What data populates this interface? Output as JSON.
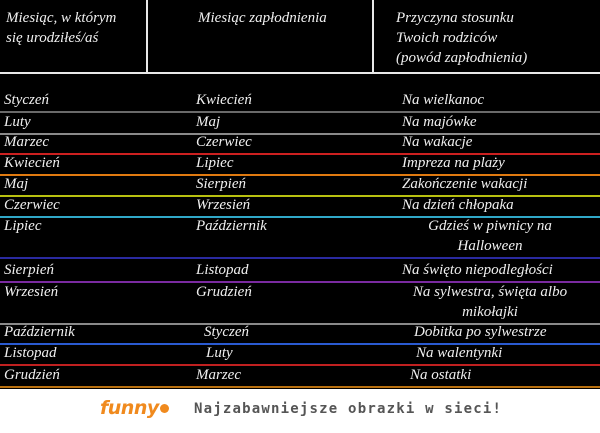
{
  "header": {
    "col1": "Miesiąc, w którym\nsię urodziłeś/aś",
    "col2": "Miesiąc zapłodnienia",
    "col3": "Przyczyna stosunku\nTwoich rodziców\n(powód zapłodnienia)"
  },
  "rows": [
    {
      "birth": "Styczeń",
      "conception": "Kwiecień",
      "reason": "Na wielkanoc",
      "line_color": "#6a6a6a"
    },
    {
      "birth": "Luty",
      "conception": "Maj",
      "reason": "Na majówke",
      "line_color": "#8a8a8a"
    },
    {
      "birth": "Marzec",
      "conception": "Czerwiec",
      "reason": "Na wakacje",
      "line_color": "#cc2020"
    },
    {
      "birth": "Kwiecień",
      "conception": "Lipiec",
      "reason": "Impreza na plaży",
      "line_color": "#e07a10"
    },
    {
      "birth": "Maj",
      "conception": "Sierpień",
      "reason": "Zakończenie wakacji",
      "line_color": "#b8c010"
    },
    {
      "birth": "Czerwiec",
      "conception": "Wrzesień",
      "reason": "Na dzień chłopaka",
      "line_color": "#30a8c8"
    },
    {
      "birth": "Lipiec",
      "conception": "Październik",
      "reason": "Gdzieś w piwnicy na Halloween",
      "line_color": "#2a2aa0"
    },
    {
      "birth": "Sierpień",
      "conception": "Listopad",
      "reason": "Na święto niepodległości",
      "line_color": "#7a2aa0"
    },
    {
      "birth": "Wrzesień",
      "conception": "Grudzień",
      "reason": "Na sylwestra, święta albo mikołajki",
      "line_color": "#8a8a8a"
    },
    {
      "birth": "Październik",
      "conception": "Styczeń",
      "reason": "Dobitka po sylwestrze",
      "line_color": "#2a5ad0"
    },
    {
      "birth": "Listopad",
      "conception": "Luty",
      "reason": "Na walentynki",
      "line_color": "#c02020"
    },
    {
      "birth": "Grudzień",
      "conception": "Marzec",
      "reason": "Na ostatki",
      "line_color": "#b87010"
    }
  ],
  "footer": {
    "logo": "funny",
    "tagline": "Najzabawniejsze obrazki w sieci!",
    "logo_color": "#f08a1e"
  }
}
